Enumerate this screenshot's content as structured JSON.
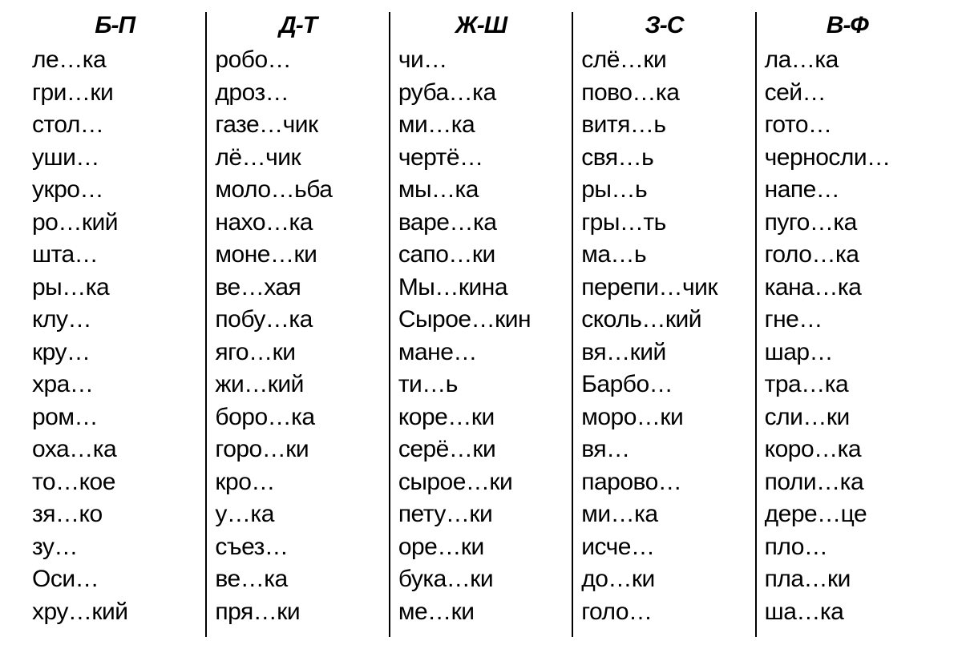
{
  "columns": [
    {
      "header": "Б-П",
      "words": [
        "ле…ка",
        "гри…ки",
        "стол…",
        "уши…",
        "укро…",
        "ро…кий",
        "шта…",
        "ры…ка",
        "клу…",
        "кру…",
        "хра…",
        "ром…",
        "оха…ка",
        "то…кое",
        "зя…ко",
        "зу…",
        "Оси…",
        "хру…кий"
      ]
    },
    {
      "header": "Д-Т",
      "words": [
        "робо…",
        "дроз…",
        "газе…чик",
        "лё…чик",
        "моло…ьба",
        "нахо…ка",
        "моне…ки",
        "ве…хая",
        "побу…ка",
        "яго…ки",
        "жи…кий",
        "боро…ка",
        "горо…ки",
        "кро…",
        "у…ка",
        "съез…",
        "ве…ка",
        "пря…ки"
      ]
    },
    {
      "header": "Ж-Ш",
      "words": [
        "чи…",
        "руба…ка",
        "ми…ка",
        "чертё…",
        "мы…ка",
        "варе…ка",
        "сапо…ки",
        "Мы…кина",
        "Сырое…кин",
        "мане…",
        "ти…ь",
        "коре…ки",
        "серё…ки",
        "сырое…ки",
        "пету…ки",
        "оре…ки",
        "бука…ки",
        "ме…ки"
      ]
    },
    {
      "header": "З-С",
      "words": [
        "слё…ки",
        "пово…ка",
        "витя…ь",
        "свя…ь",
        "ры…ь",
        "гры…ть",
        "ма…ь",
        "перепи…чик",
        "сколь…кий",
        "вя…кий",
        "Барбо…",
        "моро…ки",
        "вя…",
        "парово…",
        "ми…ка",
        "исче…",
        "до…ки",
        "голо…"
      ]
    },
    {
      "header": "В-Ф",
      "words": [
        "ла…ка",
        "сей…",
        "гото…",
        "черносли…",
        "напе…",
        "пуго…ка",
        "голо…ка",
        "кана…ка",
        "гне…",
        "шар…",
        "тра…ка",
        "сли…ки",
        "коро…ка",
        "поли…ка",
        "дере…це",
        "пло…",
        "пла…ки",
        "ша…ка"
      ]
    }
  ],
  "styling": {
    "background_color": "#ffffff",
    "text_color": "#000000",
    "border_color": "#000000",
    "header_fontsize": 30,
    "header_weight": "bold",
    "header_style": "italic",
    "word_fontsize": 30,
    "line_height": 1.35,
    "column_count": 5,
    "rows_per_column": 18
  }
}
